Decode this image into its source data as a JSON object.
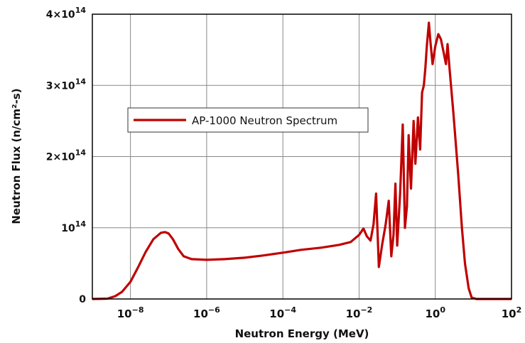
{
  "chart_data": {
    "type": "line",
    "xlabel": "Neutron Energy (MeV)",
    "ylabel": "Neutron Flux (n/cm²-s)",
    "xscale": "log",
    "xlim": [
      1e-09,
      100
    ],
    "ylim": [
      0,
      400000000000000.0
    ],
    "grid": true,
    "legend_position": "upper-left",
    "x_ticks": [
      {
        "base": "10",
        "exp": "−8"
      },
      {
        "base": "10",
        "exp": "−6"
      },
      {
        "base": "10",
        "exp": "−4"
      },
      {
        "base": "10",
        "exp": "−2"
      },
      {
        "base": "10",
        "exp": "0"
      },
      {
        "base": "10",
        "exp": "2"
      }
    ],
    "y_ticks": [
      {
        "base": "0",
        "exp": ""
      },
      {
        "base": "10",
        "exp": "14"
      },
      {
        "base": "2×10",
        "exp": "14"
      },
      {
        "base": "3×10",
        "exp": "14"
      },
      {
        "base": "4×10",
        "exp": "14"
      }
    ],
    "series": [
      {
        "name": "AP-1000 Neutron Spectrum",
        "color": "#c00000",
        "points": [
          [
            1e-09,
            0
          ],
          [
            2.5e-09,
            500000000000.0
          ],
          [
            4e-09,
            4000000000000.0
          ],
          [
            6e-09,
            10000000000000.0
          ],
          [
            1e-08,
            24000000000000.0
          ],
          [
            1.6e-08,
            45000000000000.0
          ],
          [
            2.5e-08,
            66000000000000.0
          ],
          [
            4e-08,
            84000000000000.0
          ],
          [
            6.3e-08,
            93000000000000.0
          ],
          [
            8e-08,
            94000000000000.0
          ],
          [
            1e-07,
            92000000000000.0
          ],
          [
            1.3e-07,
            84000000000000.0
          ],
          [
            1.8e-07,
            70000000000000.0
          ],
          [
            2.5e-07,
            60000000000000.0
          ],
          [
            4e-07,
            56000000000000.0
          ],
          [
            1e-06,
            55000000000000.0
          ],
          [
            3e-06,
            56000000000000.0
          ],
          [
            1e-05,
            58000000000000.0
          ],
          [
            3e-05,
            61000000000000.0
          ],
          [
            0.0001,
            65000000000000.0
          ],
          [
            0.0003,
            69000000000000.0
          ],
          [
            0.001,
            72000000000000.0
          ],
          [
            0.003,
            76000000000000.0
          ],
          [
            0.006,
            80000000000000.0
          ],
          [
            0.01,
            90000000000000.0
          ],
          [
            0.013,
            99000000000000.0
          ],
          [
            0.016,
            88000000000000.0
          ],
          [
            0.02,
            82000000000000.0
          ],
          [
            0.024,
            105000000000000.0
          ],
          [
            0.028,
            148000000000000.0
          ],
          [
            0.033,
            45000000000000.0
          ],
          [
            0.04,
            75000000000000.0
          ],
          [
            0.05,
            105000000000000.0
          ],
          [
            0.06,
            138000000000000.0
          ],
          [
            0.07,
            60000000000000.0
          ],
          [
            0.08,
            90000000000000.0
          ],
          [
            0.09,
            162000000000000.0
          ],
          [
            0.1,
            75000000000000.0
          ],
          [
            0.12,
            150000000000000.0
          ],
          [
            0.14,
            245000000000000.0
          ],
          [
            0.16,
            100000000000000.0
          ],
          [
            0.18,
            130000000000000.0
          ],
          [
            0.2,
            230000000000000.0
          ],
          [
            0.23,
            155000000000000.0
          ],
          [
            0.27,
            250000000000000.0
          ],
          [
            0.3,
            190000000000000.0
          ],
          [
            0.35,
            255000000000000.0
          ],
          [
            0.4,
            210000000000000.0
          ],
          [
            0.45,
            290000000000000.0
          ],
          [
            0.5,
            300000000000000.0
          ],
          [
            0.55,
            325000000000000.0
          ],
          [
            0.6,
            355000000000000.0
          ],
          [
            0.68,
            388000000000000.0
          ],
          [
            0.75,
            360000000000000.0
          ],
          [
            0.85,
            330000000000000.0
          ],
          [
            1.0,
            355000000000000.0
          ],
          [
            1.2,
            372000000000000.0
          ],
          [
            1.4,
            365000000000000.0
          ],
          [
            1.6,
            350000000000000.0
          ],
          [
            1.9,
            330000000000000.0
          ],
          [
            2.1,
            358000000000000.0
          ],
          [
            2.4,
            320000000000000.0
          ],
          [
            3.0,
            260000000000000.0
          ],
          [
            4.0,
            175000000000000.0
          ],
          [
            5.0,
            100000000000000.0
          ],
          [
            6.0,
            50000000000000.0
          ],
          [
            7.5,
            15000000000000.0
          ],
          [
            9.0,
            2000000000000.0
          ],
          [
            12,
            0
          ],
          [
            100,
            0
          ]
        ]
      }
    ]
  }
}
